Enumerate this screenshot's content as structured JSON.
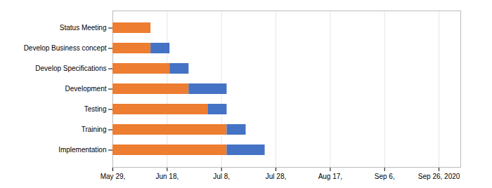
{
  "chart_data": {
    "type": "bar",
    "orientation": "horizontal",
    "stacked": true,
    "categories": [
      "Implementation",
      "Training",
      "Testing",
      "Development",
      "Develop Specifications",
      "Develop Business concept",
      "Status Meeting"
    ],
    "series": [
      {
        "color": "#ED7D31",
        "values": [
          42,
          42,
          35,
          28,
          21,
          14,
          14
        ]
      },
      {
        "color": "#4472C4",
        "values": [
          14,
          7,
          7,
          14,
          7,
          7,
          0
        ]
      }
    ],
    "xlim": [
      0,
      128
    ],
    "xticks": [
      {
        "value": 0,
        "label": "May 29,"
      },
      {
        "value": 20,
        "label": "Jun 18,"
      },
      {
        "value": 40,
        "label": "Jul 8,"
      },
      {
        "value": 60,
        "label": "Jul 28,"
      },
      {
        "value": 80,
        "label": "Aug 17,"
      },
      {
        "value": 100,
        "label": "Sep 6,"
      },
      {
        "value": 120,
        "label": "Sep 26, 2020"
      }
    ],
    "grid": true
  }
}
